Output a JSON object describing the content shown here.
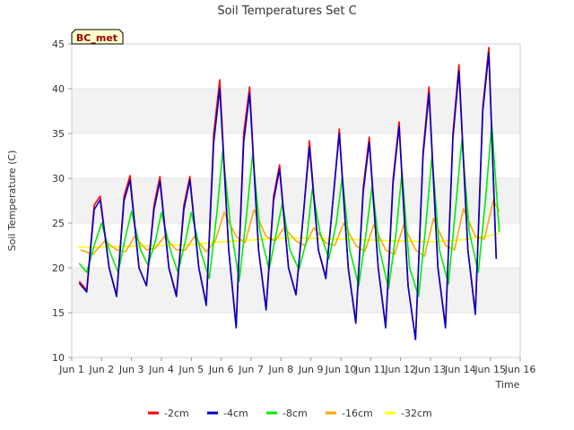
{
  "chart_data": {
    "type": "line",
    "title": "Soil Temperatures Set C",
    "xlabel": "Time",
    "ylabel": "Soil Temperature (C)",
    "badge": "BC_met",
    "xlim": [
      1,
      16
    ],
    "ylim": [
      10,
      45
    ],
    "x_ticks": [
      "Jun 1",
      "Jun 2",
      "Jun 3",
      "Jun 4",
      "Jun 5",
      "Jun 6",
      "Jun 7",
      "Jun 8",
      "Jun 9",
      "Jun 10",
      "Jun 11",
      "Jun 12",
      "Jun 13",
      "Jun 14",
      "Jun 15",
      "Jun 16"
    ],
    "y_ticks": [
      10,
      15,
      20,
      25,
      30,
      35,
      40,
      45
    ],
    "grid": "horizontal bands",
    "legend_position": "bottom",
    "x_unit": "day of June",
    "series": [
      {
        "name": "-2cm",
        "color": "#ff0000",
        "x": [
          1.25,
          1.5,
          1.75,
          1.95,
          2.25,
          2.5,
          2.75,
          2.95,
          3.25,
          3.5,
          3.75,
          3.95,
          4.25,
          4.5,
          4.75,
          4.95,
          5.25,
          5.5,
          5.75,
          5.95,
          6.25,
          6.5,
          6.75,
          6.95,
          7.25,
          7.5,
          7.75,
          7.95,
          8.25,
          8.5,
          8.75,
          8.95,
          9.25,
          9.5,
          9.75,
          9.95,
          10.25,
          10.5,
          10.75,
          10.95,
          11.25,
          11.5,
          11.75,
          11.95,
          12.25,
          12.5,
          12.75,
          12.95,
          13.25,
          13.5,
          13.75,
          13.95,
          14.25,
          14.5,
          14.75,
          14.95,
          15.2
        ],
        "y": [
          18.5,
          17.5,
          27,
          28,
          20,
          17,
          28,
          30.3,
          20,
          18,
          27,
          30.2,
          20,
          17,
          27,
          30.2,
          20,
          16,
          35,
          41,
          22,
          13.5,
          35,
          40.2,
          22,
          15.5,
          28,
          31.5,
          20,
          17,
          26,
          34.2,
          22,
          19,
          28,
          35.5,
          20,
          14,
          29,
          34.6,
          20,
          13.5,
          30,
          36.3,
          18,
          12,
          33,
          40.2,
          20,
          13.5,
          35,
          42.7,
          22,
          15,
          38,
          44.6,
          21
        ]
      },
      {
        "name": "-4cm",
        "color": "#0000cc",
        "x": [
          1.25,
          1.5,
          1.75,
          1.95,
          2.25,
          2.5,
          2.75,
          2.95,
          3.25,
          3.5,
          3.75,
          3.95,
          4.25,
          4.5,
          4.75,
          4.95,
          5.25,
          5.5,
          5.75,
          5.95,
          6.25,
          6.5,
          6.75,
          6.95,
          7.25,
          7.5,
          7.75,
          7.95,
          8.25,
          8.5,
          8.75,
          8.95,
          9.25,
          9.5,
          9.75,
          9.95,
          10.25,
          10.5,
          10.75,
          10.95,
          11.25,
          11.5,
          11.75,
          11.95,
          12.25,
          12.5,
          12.75,
          12.95,
          13.25,
          13.5,
          13.75,
          13.95,
          14.25,
          14.5,
          14.75,
          14.95,
          15.2
        ],
        "y": [
          18.3,
          17.3,
          26.5,
          27.6,
          20,
          16.8,
          27.5,
          29.8,
          20,
          18,
          26.5,
          29.7,
          20,
          16.8,
          26.5,
          29.8,
          20,
          15.8,
          34,
          40,
          22,
          13.3,
          34,
          39.5,
          22,
          15.3,
          27.5,
          31,
          20,
          17,
          26,
          33.5,
          22,
          18.8,
          28,
          35,
          20,
          13.8,
          28.5,
          34,
          20,
          13.3,
          29.5,
          35.8,
          18,
          12,
          32.5,
          39.5,
          20,
          13.3,
          34.5,
          42,
          22,
          14.8,
          37.5,
          44,
          21
        ]
      },
      {
        "name": "-8cm",
        "color": "#00ee00",
        "x": [
          1.25,
          1.5,
          1.75,
          2.0,
          2.25,
          2.55,
          2.8,
          3.0,
          3.3,
          3.55,
          3.8,
          4.0,
          4.3,
          4.55,
          4.8,
          5.0,
          5.3,
          5.6,
          5.85,
          6.05,
          6.3,
          6.6,
          6.85,
          7.05,
          7.3,
          7.6,
          7.85,
          8.05,
          8.3,
          8.6,
          8.85,
          9.05,
          9.3,
          9.6,
          9.85,
          10.05,
          10.3,
          10.6,
          10.85,
          11.05,
          11.3,
          11.6,
          11.85,
          12.05,
          12.3,
          12.6,
          12.85,
          13.05,
          13.3,
          13.6,
          13.85,
          14.05,
          14.3,
          14.6,
          14.85,
          15.05,
          15.3
        ],
        "y": [
          20.5,
          19.5,
          22.5,
          25,
          22,
          19.5,
          23.5,
          26.3,
          22,
          20.3,
          23,
          26.2,
          22,
          19.5,
          23,
          26.2,
          22,
          18.8,
          26,
          33,
          25,
          18.5,
          26,
          32.7,
          24,
          19.8,
          24,
          27.3,
          22,
          19.8,
          23,
          28.8,
          24,
          21,
          25,
          30.2,
          22,
          18,
          24,
          29.2,
          22,
          17.7,
          24,
          30.7,
          20,
          16.8,
          25,
          32.5,
          22,
          18.2,
          27,
          34.3,
          24,
          19.5,
          28,
          36,
          24
        ]
      },
      {
        "name": "-16cm",
        "color": "#ffa500",
        "x": [
          1.3,
          1.7,
          2.1,
          2.5,
          2.8,
          3.1,
          3.5,
          3.8,
          4.1,
          4.5,
          4.8,
          5.1,
          5.5,
          5.8,
          6.1,
          6.5,
          6.8,
          7.1,
          7.5,
          7.8,
          8.1,
          8.5,
          8.8,
          9.1,
          9.5,
          9.8,
          10.1,
          10.5,
          10.8,
          11.1,
          11.5,
          11.8,
          12.1,
          12.5,
          12.8,
          13.1,
          13.5,
          13.8,
          14.1,
          14.5,
          14.8,
          15.1,
          15.3
        ],
        "y": [
          22,
          21.5,
          23,
          22,
          21.8,
          23.5,
          22,
          22.2,
          23.5,
          22,
          22,
          23.5,
          21.8,
          23,
          26.2,
          23.5,
          22.8,
          26.5,
          23.5,
          23,
          24.5,
          23,
          22.5,
          24.5,
          22.8,
          22.5,
          25,
          22.5,
          21.8,
          24.8,
          22,
          21.5,
          24.8,
          22,
          21.3,
          25.5,
          22.5,
          22,
          26.6,
          23.5,
          23.2,
          27.5,
          26.3
        ]
      },
      {
        "name": "-32cm",
        "color": "#ffff00",
        "x": [
          1.2,
          2,
          3,
          4,
          5,
          6,
          7,
          8,
          9,
          10,
          11,
          12,
          13,
          14,
          15,
          15.3
        ],
        "y": [
          22.3,
          22.3,
          22.4,
          22.5,
          22.6,
          22.9,
          23.1,
          23.3,
          23.3,
          23.2,
          23.1,
          23.0,
          22.9,
          23.1,
          23.6,
          23.9
        ]
      }
    ]
  }
}
